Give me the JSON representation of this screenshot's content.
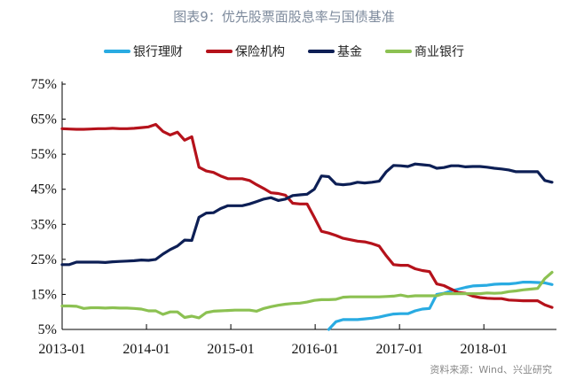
{
  "chart_data": {
    "type": "line",
    "title": "图表9：优先股票面股息率与国债基准",
    "x_start": "2013-01",
    "x_frequency": "monthly",
    "x_ticks": [
      "2013-01",
      "2014-01",
      "2015-01",
      "2016-01",
      "2017-01",
      "2018-01"
    ],
    "y_ticks": [
      "5%",
      "15%",
      "25%",
      "35%",
      "45%",
      "55%",
      "65%",
      "75%"
    ],
    "ylim": [
      5,
      75
    ],
    "ylabel": "",
    "xlabel": "",
    "legend_position": "top",
    "series": [
      {
        "name": "银行理财",
        "color": "#29abe2",
        "start_index": 37,
        "values": [
          5,
          7.2,
          7.8,
          7.8,
          7.8,
          8,
          8.2,
          8.5,
          9,
          9.4,
          9.5,
          9.5,
          10.3,
          10.8,
          11,
          15,
          15.3,
          16,
          16.5,
          17,
          17.4,
          17.5,
          17.6,
          17.9,
          18,
          18,
          18.2,
          18.5,
          18.5,
          18.4,
          18.3,
          17.8
        ]
      },
      {
        "name": "保险机构",
        "color": "#b5121b",
        "start_index": 0,
        "values": [
          62.3,
          62.2,
          62.1,
          62.1,
          62.2,
          62.3,
          62.3,
          62.4,
          62.3,
          62.3,
          62.4,
          62.6,
          62.8,
          63.5,
          61.5,
          60.5,
          61.3,
          59,
          60,
          51.3,
          50.2,
          49.8,
          48.8,
          48,
          48,
          48,
          47.5,
          46.3,
          45.2,
          44,
          43.8,
          43.3,
          41,
          40.8,
          40.8,
          37,
          33,
          32.5,
          31.8,
          31,
          30.6,
          30.2,
          30,
          29.5,
          28.8,
          26,
          23.5,
          23.3,
          23.3,
          22.3,
          21.8,
          21.5,
          18,
          17.5,
          16.5,
          15.5,
          15.3,
          14.5,
          14.1,
          13.9,
          13.8,
          13.8,
          13.4,
          13.3,
          13.2,
          13.2,
          13.2,
          12,
          11.3
        ]
      },
      {
        "name": "基金",
        "color": "#0d1f55",
        "start_index": 0,
        "values": [
          23.5,
          23.5,
          24.2,
          24.2,
          24.2,
          24.2,
          24.1,
          24.3,
          24.4,
          24.5,
          24.6,
          24.8,
          24.7,
          25,
          26.5,
          27.8,
          28.8,
          30.5,
          30.4,
          37,
          38.2,
          38.3,
          39.5,
          40.3,
          40.3,
          40.3,
          40.8,
          41.5,
          42.2,
          42.6,
          41.8,
          42.2,
          43.2,
          43.4,
          43.6,
          45,
          48.8,
          48.6,
          46.5,
          46.3,
          46.5,
          47,
          46.8,
          47,
          47.3,
          50,
          51.8,
          51.7,
          51.5,
          52.2,
          52,
          51.8,
          51,
          51.2,
          51.7,
          51.7,
          51.4,
          51.5,
          51.5,
          51.3,
          51,
          50.8,
          50.5,
          50,
          50,
          50,
          50,
          47.5,
          47
        ]
      },
      {
        "name": "商业银行",
        "color": "#8cc152",
        "start_index": 0,
        "values": [
          11.7,
          11.7,
          11.6,
          11,
          11.2,
          11.2,
          11.1,
          11.2,
          11.1,
          11.1,
          11,
          10.8,
          10.3,
          10.3,
          9.3,
          10,
          10,
          8.4,
          8.8,
          8.3,
          9.8,
          10.2,
          10.3,
          10.4,
          10.5,
          10.5,
          10.5,
          10.2,
          11,
          11.5,
          11.9,
          12.2,
          12.4,
          12.5,
          12.8,
          13.3,
          13.5,
          13.5,
          13.6,
          14.2,
          14.3,
          14.3,
          14.3,
          14.3,
          14.3,
          14.4,
          14.5,
          14.8,
          14.4,
          14.6,
          14.6,
          14.6,
          14.6,
          15.2,
          15.2,
          15.2,
          15.2,
          15.2,
          15.2,
          15.4,
          15.3,
          15.4,
          15.8,
          16,
          16.3,
          16.5,
          16.7,
          19.5,
          21.3
        ]
      }
    ]
  },
  "source": "资料来源：Wind、兴业研究"
}
